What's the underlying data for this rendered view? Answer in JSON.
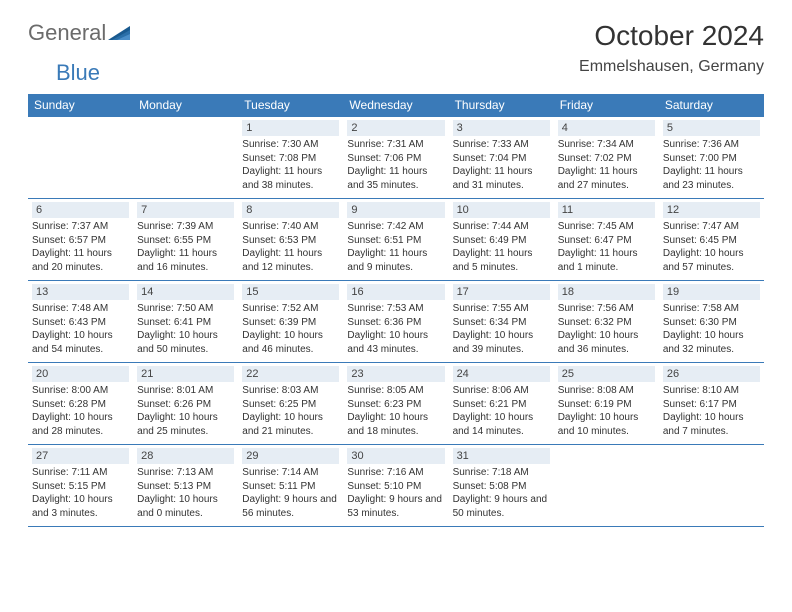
{
  "logo": {
    "part1": "General",
    "part2": "Blue",
    "tri_colors": [
      "#195a8f",
      "#2a6fa8",
      "#4a8ec8"
    ]
  },
  "title": "October 2024",
  "location": "Emmelshausen, Germany",
  "theme": {
    "header_bg": "#3a7ab8",
    "header_fg": "#ffffff",
    "daynum_bg": "#e6edf4",
    "border": "#3a7ab8"
  },
  "weekdays": [
    "Sunday",
    "Monday",
    "Tuesday",
    "Wednesday",
    "Thursday",
    "Friday",
    "Saturday"
  ],
  "weeks": [
    [
      {
        "n": "",
        "sr": "",
        "ss": "",
        "dl": ""
      },
      {
        "n": "",
        "sr": "",
        "ss": "",
        "dl": ""
      },
      {
        "n": "1",
        "sr": "Sunrise: 7:30 AM",
        "ss": "Sunset: 7:08 PM",
        "dl": "Daylight: 11 hours and 38 minutes."
      },
      {
        "n": "2",
        "sr": "Sunrise: 7:31 AM",
        "ss": "Sunset: 7:06 PM",
        "dl": "Daylight: 11 hours and 35 minutes."
      },
      {
        "n": "3",
        "sr": "Sunrise: 7:33 AM",
        "ss": "Sunset: 7:04 PM",
        "dl": "Daylight: 11 hours and 31 minutes."
      },
      {
        "n": "4",
        "sr": "Sunrise: 7:34 AM",
        "ss": "Sunset: 7:02 PM",
        "dl": "Daylight: 11 hours and 27 minutes."
      },
      {
        "n": "5",
        "sr": "Sunrise: 7:36 AM",
        "ss": "Sunset: 7:00 PM",
        "dl": "Daylight: 11 hours and 23 minutes."
      }
    ],
    [
      {
        "n": "6",
        "sr": "Sunrise: 7:37 AM",
        "ss": "Sunset: 6:57 PM",
        "dl": "Daylight: 11 hours and 20 minutes."
      },
      {
        "n": "7",
        "sr": "Sunrise: 7:39 AM",
        "ss": "Sunset: 6:55 PM",
        "dl": "Daylight: 11 hours and 16 minutes."
      },
      {
        "n": "8",
        "sr": "Sunrise: 7:40 AM",
        "ss": "Sunset: 6:53 PM",
        "dl": "Daylight: 11 hours and 12 minutes."
      },
      {
        "n": "9",
        "sr": "Sunrise: 7:42 AM",
        "ss": "Sunset: 6:51 PM",
        "dl": "Daylight: 11 hours and 9 minutes."
      },
      {
        "n": "10",
        "sr": "Sunrise: 7:44 AM",
        "ss": "Sunset: 6:49 PM",
        "dl": "Daylight: 11 hours and 5 minutes."
      },
      {
        "n": "11",
        "sr": "Sunrise: 7:45 AM",
        "ss": "Sunset: 6:47 PM",
        "dl": "Daylight: 11 hours and 1 minute."
      },
      {
        "n": "12",
        "sr": "Sunrise: 7:47 AM",
        "ss": "Sunset: 6:45 PM",
        "dl": "Daylight: 10 hours and 57 minutes."
      }
    ],
    [
      {
        "n": "13",
        "sr": "Sunrise: 7:48 AM",
        "ss": "Sunset: 6:43 PM",
        "dl": "Daylight: 10 hours and 54 minutes."
      },
      {
        "n": "14",
        "sr": "Sunrise: 7:50 AM",
        "ss": "Sunset: 6:41 PM",
        "dl": "Daylight: 10 hours and 50 minutes."
      },
      {
        "n": "15",
        "sr": "Sunrise: 7:52 AM",
        "ss": "Sunset: 6:39 PM",
        "dl": "Daylight: 10 hours and 46 minutes."
      },
      {
        "n": "16",
        "sr": "Sunrise: 7:53 AM",
        "ss": "Sunset: 6:36 PM",
        "dl": "Daylight: 10 hours and 43 minutes."
      },
      {
        "n": "17",
        "sr": "Sunrise: 7:55 AM",
        "ss": "Sunset: 6:34 PM",
        "dl": "Daylight: 10 hours and 39 minutes."
      },
      {
        "n": "18",
        "sr": "Sunrise: 7:56 AM",
        "ss": "Sunset: 6:32 PM",
        "dl": "Daylight: 10 hours and 36 minutes."
      },
      {
        "n": "19",
        "sr": "Sunrise: 7:58 AM",
        "ss": "Sunset: 6:30 PM",
        "dl": "Daylight: 10 hours and 32 minutes."
      }
    ],
    [
      {
        "n": "20",
        "sr": "Sunrise: 8:00 AM",
        "ss": "Sunset: 6:28 PM",
        "dl": "Daylight: 10 hours and 28 minutes."
      },
      {
        "n": "21",
        "sr": "Sunrise: 8:01 AM",
        "ss": "Sunset: 6:26 PM",
        "dl": "Daylight: 10 hours and 25 minutes."
      },
      {
        "n": "22",
        "sr": "Sunrise: 8:03 AM",
        "ss": "Sunset: 6:25 PM",
        "dl": "Daylight: 10 hours and 21 minutes."
      },
      {
        "n": "23",
        "sr": "Sunrise: 8:05 AM",
        "ss": "Sunset: 6:23 PM",
        "dl": "Daylight: 10 hours and 18 minutes."
      },
      {
        "n": "24",
        "sr": "Sunrise: 8:06 AM",
        "ss": "Sunset: 6:21 PM",
        "dl": "Daylight: 10 hours and 14 minutes."
      },
      {
        "n": "25",
        "sr": "Sunrise: 8:08 AM",
        "ss": "Sunset: 6:19 PM",
        "dl": "Daylight: 10 hours and 10 minutes."
      },
      {
        "n": "26",
        "sr": "Sunrise: 8:10 AM",
        "ss": "Sunset: 6:17 PM",
        "dl": "Daylight: 10 hours and 7 minutes."
      }
    ],
    [
      {
        "n": "27",
        "sr": "Sunrise: 7:11 AM",
        "ss": "Sunset: 5:15 PM",
        "dl": "Daylight: 10 hours and 3 minutes."
      },
      {
        "n": "28",
        "sr": "Sunrise: 7:13 AM",
        "ss": "Sunset: 5:13 PM",
        "dl": "Daylight: 10 hours and 0 minutes."
      },
      {
        "n": "29",
        "sr": "Sunrise: 7:14 AM",
        "ss": "Sunset: 5:11 PM",
        "dl": "Daylight: 9 hours and 56 minutes."
      },
      {
        "n": "30",
        "sr": "Sunrise: 7:16 AM",
        "ss": "Sunset: 5:10 PM",
        "dl": "Daylight: 9 hours and 53 minutes."
      },
      {
        "n": "31",
        "sr": "Sunrise: 7:18 AM",
        "ss": "Sunset: 5:08 PM",
        "dl": "Daylight: 9 hours and 50 minutes."
      },
      {
        "n": "",
        "sr": "",
        "ss": "",
        "dl": ""
      },
      {
        "n": "",
        "sr": "",
        "ss": "",
        "dl": ""
      }
    ]
  ]
}
